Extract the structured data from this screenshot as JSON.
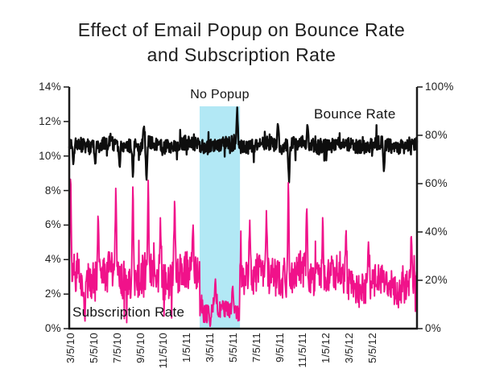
{
  "title": {
    "line1": "Effect of Email Popup on Bounce Rate",
    "line2": "and Subscription Rate"
  },
  "chart_data": {
    "type": "line",
    "title": "Effect of Email Popup on Bounce Rate and Subscription Rate",
    "grid": false,
    "legend": "inline-labels",
    "x_axis": {
      "tick_labels": [
        "3/5/10",
        "5/5/10",
        "7/5/10",
        "9/5/10",
        "11/5/10",
        "1/5/11",
        "3/5/11",
        "5/5/11",
        "7/5/11",
        "9/5/11",
        "11/5/11",
        "1/5/12",
        "3/5/12",
        "5/5/12"
      ],
      "tick_label_rotation_deg": -90
    },
    "y_axis_left": {
      "ticks": [
        "14%",
        "12%",
        "10%",
        "8%",
        "6%",
        "4%",
        "2%",
        "0%"
      ],
      "min": 0,
      "max": 14,
      "unit": "%",
      "series": "Subscription Rate"
    },
    "y_axis_right": {
      "ticks": [
        "100%",
        "80%",
        "60%",
        "40%",
        "20%",
        "0%"
      ],
      "min": 0,
      "max": 100,
      "unit": "%",
      "series": "Bounce Rate"
    },
    "annotation_band": {
      "label": "No Popup",
      "color": "#b2e8f5",
      "x_frac_start": 0.375,
      "x_frac_end": 0.491,
      "spans_labels": [
        "1/5/11",
        "5/5/11"
      ]
    },
    "series": [
      {
        "name": "Bounce Rate",
        "color": "#0e0e0e",
        "axis": "right",
        "stroke_width": 2.4,
        "baseline": 76,
        "noise": 3.0,
        "spikes": [
          {
            "x": 0.012,
            "v": 67
          },
          {
            "x": 0.075,
            "v": 67
          },
          {
            "x": 0.145,
            "v": 66
          },
          {
            "x": 0.183,
            "v": 62
          },
          {
            "x": 0.215,
            "v": 85
          },
          {
            "x": 0.222,
            "v": 60
          },
          {
            "x": 0.483,
            "v": 92
          },
          {
            "x": 0.6,
            "v": 86
          },
          {
            "x": 0.632,
            "v": 60
          },
          {
            "x": 0.685,
            "v": 85
          },
          {
            "x": 0.905,
            "v": 64
          }
        ]
      },
      {
        "name": "Subscription Rate",
        "color": "#f0128a",
        "axis": "left",
        "stroke_width": 1.9,
        "segments": [
          {
            "from": 0,
            "to": 0.375,
            "base": 3.0,
            "noise": 1.15
          },
          {
            "from": 0.375,
            "to": 0.49,
            "base": 1.05,
            "noise": 0.55
          },
          {
            "from": 0.49,
            "to": 0.78,
            "base": 3.1,
            "noise": 1.1
          },
          {
            "from": 0.78,
            "to": 1.0,
            "base": 2.55,
            "noise": 0.95
          }
        ],
        "spikes": [
          {
            "x": 0.004,
            "v": 9.3
          },
          {
            "x": 0.045,
            "v": 0.2
          },
          {
            "x": 0.083,
            "v": 6.8
          },
          {
            "x": 0.134,
            "v": 8.3
          },
          {
            "x": 0.183,
            "v": 8.6
          },
          {
            "x": 0.227,
            "v": 8.6
          },
          {
            "x": 0.262,
            "v": 6.5
          },
          {
            "x": 0.303,
            "v": 7.7
          },
          {
            "x": 0.356,
            "v": 6.2
          },
          {
            "x": 0.405,
            "v": 0.12
          },
          {
            "x": 0.42,
            "v": 3.0
          },
          {
            "x": 0.47,
            "v": 2.6
          },
          {
            "x": 0.519,
            "v": 6.5
          },
          {
            "x": 0.567,
            "v": 6.9
          },
          {
            "x": 0.63,
            "v": 8.7
          },
          {
            "x": 0.683,
            "v": 7.3
          },
          {
            "x": 0.729,
            "v": 6.6
          },
          {
            "x": 0.796,
            "v": 5.9
          },
          {
            "x": 0.86,
            "v": 5.2
          },
          {
            "x": 0.984,
            "v": 5.6
          }
        ]
      }
    ],
    "seed": 9,
    "points_per_series": 860
  },
  "colors": {
    "subscription_pink": "#f0128a",
    "bounce_black": "#0e0e0e",
    "band_blue": "#b2e8f5",
    "axis": "#1a1a1a"
  }
}
